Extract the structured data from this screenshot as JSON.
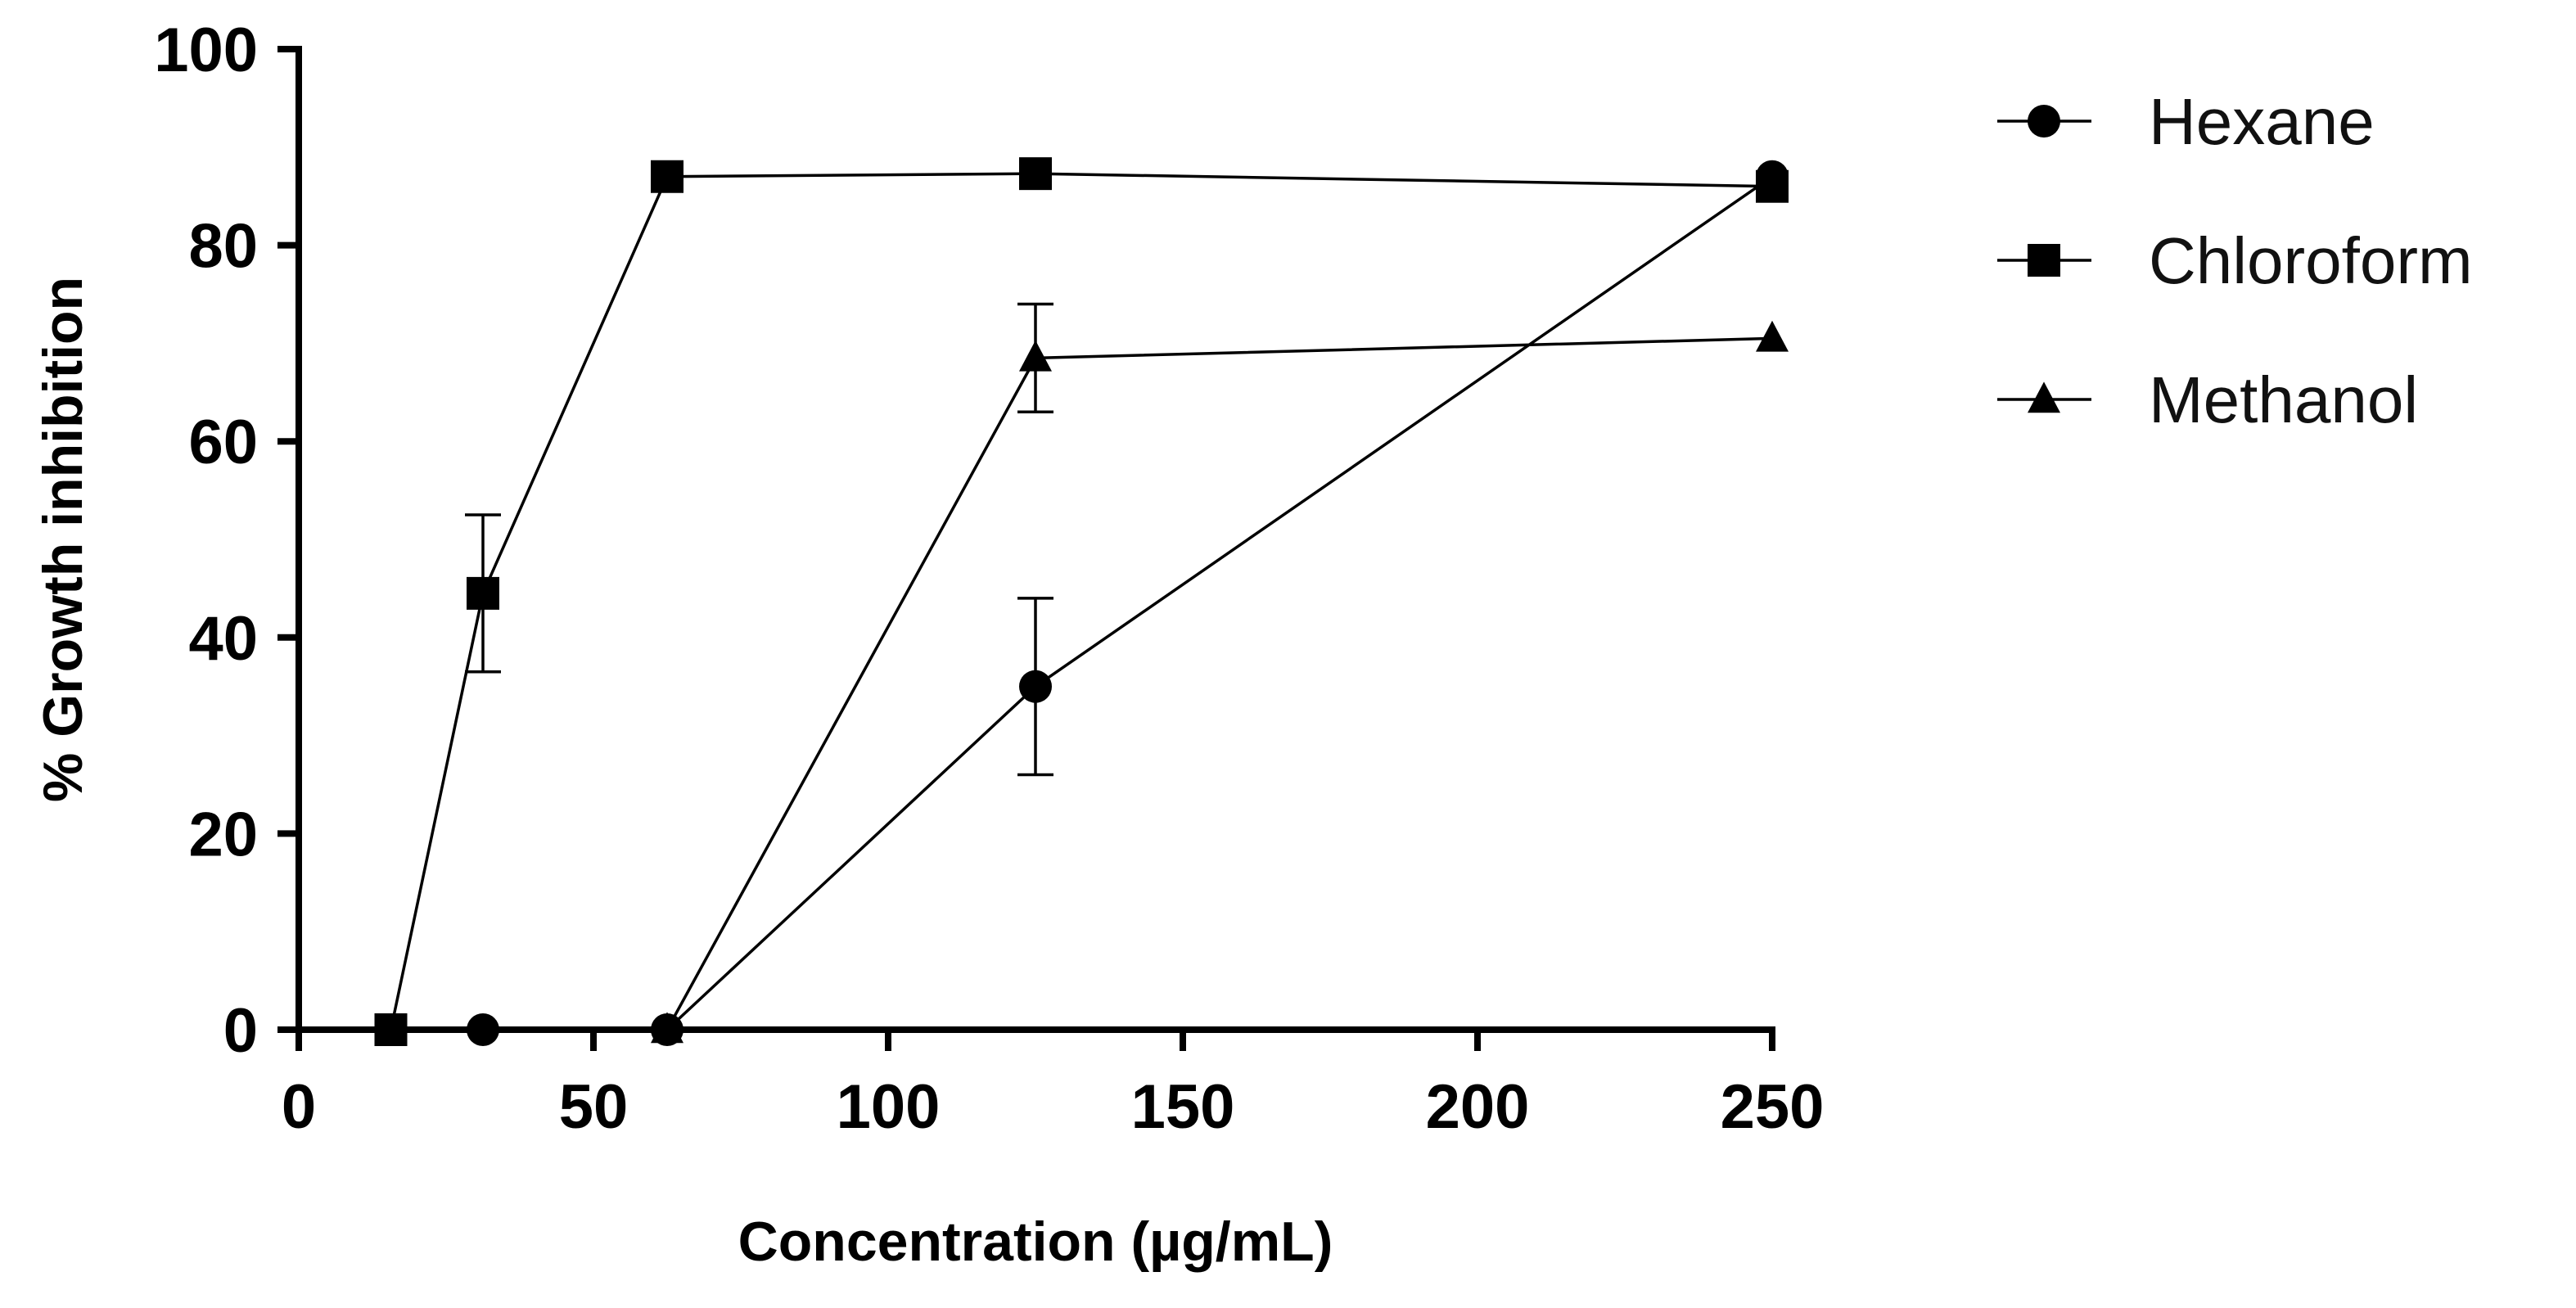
{
  "chart_data": {
    "type": "line",
    "xlabel": "Concentration (µg/mL)",
    "ylabel": "% Growth inhibition",
    "xlim": [
      0,
      250
    ],
    "ylim": [
      0,
      100
    ],
    "xticks": [
      0,
      50,
      100,
      150,
      200,
      250
    ],
    "yticks": [
      0,
      20,
      40,
      60,
      80,
      100
    ],
    "grid": false,
    "legend_position": "top-right",
    "series": [
      {
        "name": "Hexane",
        "marker": "circle",
        "x": [
          15.625,
          31.25,
          62.5,
          125,
          250
        ],
        "y": [
          0,
          0,
          0,
          35,
          87
        ],
        "err": [
          0,
          0,
          0,
          9,
          0
        ]
      },
      {
        "name": "Chloroform",
        "marker": "square",
        "x": [
          15.625,
          31.25,
          62.5,
          125,
          250
        ],
        "y": [
          0,
          44.5,
          87,
          87.3,
          86
        ],
        "err": [
          0,
          8,
          0,
          0,
          0
        ]
      },
      {
        "name": "Methanol",
        "marker": "triangle",
        "x": [
          62.5,
          125,
          250
        ],
        "y": [
          0,
          68.5,
          70.5
        ],
        "err": [
          0,
          5.5,
          0
        ]
      }
    ]
  }
}
